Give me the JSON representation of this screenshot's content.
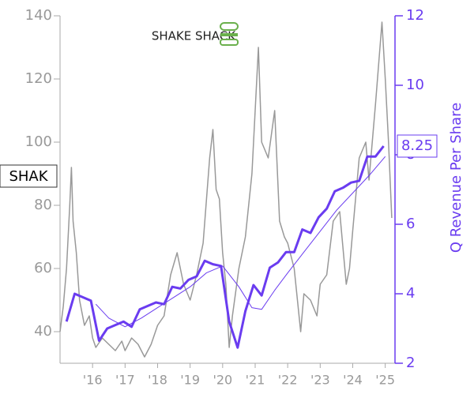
{
  "chart_data": {
    "type": "line",
    "logo": "SHAKE SHACK",
    "ticker": "SHAK",
    "last_label": "8.25",
    "y2_label": "Q Revenue Per Share",
    "xlim": [
      2015,
      2025.3
    ],
    "xticks": [
      {
        "value": 2016,
        "label": "'16"
      },
      {
        "value": 2017,
        "label": "'17"
      },
      {
        "value": 2018,
        "label": "'18"
      },
      {
        "value": 2019,
        "label": "'19"
      },
      {
        "value": 2020,
        "label": "'20"
      },
      {
        "value": 2021,
        "label": "'21"
      },
      {
        "value": 2022,
        "label": "'22"
      },
      {
        "value": 2023,
        "label": "'23"
      },
      {
        "value": 2024,
        "label": "'24"
      },
      {
        "value": 2025,
        "label": "'25"
      }
    ],
    "ylim": [
      30,
      140
    ],
    "yticks": [
      40,
      60,
      80,
      100,
      120,
      140
    ],
    "y2lim": [
      2,
      12
    ],
    "y2ticks": [
      2,
      4,
      6,
      8,
      10,
      12
    ],
    "series": [
      {
        "color": "#999999",
        "width": 1.5,
        "axis": "y",
        "x": [
          2015.0,
          2015.1,
          2015.2,
          2015.3,
          2015.35,
          2015.4,
          2015.5,
          2015.6,
          2015.75,
          2015.9,
          2016.0,
          2016.1,
          2016.3,
          2016.5,
          2016.7,
          2016.9,
          2017.0,
          2017.2,
          2017.4,
          2017.6,
          2017.8,
          2018.0,
          2018.2,
          2018.4,
          2018.6,
          2018.8,
          2019.0,
          2019.2,
          2019.4,
          2019.6,
          2019.7,
          2019.8,
          2019.9,
          2020.0,
          2020.1,
          2020.2,
          2020.3,
          2020.5,
          2020.7,
          2020.9,
          2021.0,
          2021.1,
          2021.2,
          2021.4,
          2021.6,
          2021.75,
          2021.9,
          2022.0,
          2022.2,
          2022.4,
          2022.5,
          2022.7,
          2022.9,
          2023.0,
          2023.2,
          2023.4,
          2023.6,
          2023.8,
          2023.9,
          2024.0,
          2024.2,
          2024.4,
          2024.5,
          2024.7,
          2024.8,
          2024.9,
          2025.0,
          2025.1,
          2025.2
        ],
        "values": [
          40,
          48,
          60,
          80,
          92,
          75,
          65,
          50,
          42,
          45,
          38,
          35,
          38,
          36,
          34,
          37,
          34,
          38,
          36,
          32,
          36,
          42,
          45,
          58,
          65,
          55,
          50,
          58,
          68,
          95,
          104,
          85,
          82,
          65,
          55,
          35,
          45,
          60,
          70,
          90,
          110,
          130,
          100,
          95,
          110,
          75,
          70,
          68,
          60,
          40,
          52,
          50,
          45,
          55,
          58,
          75,
          78,
          55,
          60,
          72,
          95,
          100,
          88,
          112,
          125,
          138,
          120,
          100,
          76
        ]
      },
      {
        "color": "#6a3cf0",
        "width": 3,
        "axis": "y2",
        "x": [
          2015.2,
          2015.45,
          2015.7,
          2015.95,
          2016.2,
          2016.45,
          2016.7,
          2016.95,
          2017.2,
          2017.45,
          2017.7,
          2017.95,
          2018.2,
          2018.45,
          2018.7,
          2018.95,
          2019.2,
          2019.45,
          2019.7,
          2019.95,
          2020.2,
          2020.46,
          2020.7,
          2020.95,
          2021.2,
          2021.45,
          2021.7,
          2021.95,
          2022.2,
          2022.45,
          2022.7,
          2022.95,
          2023.2,
          2023.45,
          2023.7,
          2023.95,
          2024.2,
          2024.45,
          2024.7,
          2024.95
        ],
        "values": [
          3.2,
          4.0,
          3.9,
          3.8,
          2.65,
          3.0,
          3.1,
          3.2,
          3.05,
          3.55,
          3.65,
          3.75,
          3.7,
          4.2,
          4.15,
          4.4,
          4.5,
          4.95,
          4.85,
          4.8,
          3.2,
          2.45,
          3.5,
          4.25,
          3.95,
          4.75,
          4.9,
          5.2,
          5.2,
          5.85,
          5.75,
          6.2,
          6.45,
          6.95,
          7.05,
          7.2,
          7.25,
          7.95,
          7.95,
          8.25
        ]
      },
      {
        "color": "#6a3cf0",
        "width": 1,
        "axis": "y2",
        "x": [
          2016.1,
          2016.5,
          2017.0,
          2017.5,
          2018.0,
          2018.5,
          2019.0,
          2019.5,
          2020.0,
          2020.5,
          2020.9,
          2021.2,
          2021.6,
          2022.0,
          2022.5,
          2023.0,
          2023.5,
          2024.0,
          2024.5,
          2025.0
        ],
        "values": [
          3.7,
          3.3,
          3.05,
          3.3,
          3.6,
          3.9,
          4.2,
          4.6,
          4.8,
          4.2,
          3.6,
          3.55,
          4.1,
          4.6,
          5.2,
          5.8,
          6.4,
          6.9,
          7.4,
          7.95
        ]
      }
    ]
  }
}
